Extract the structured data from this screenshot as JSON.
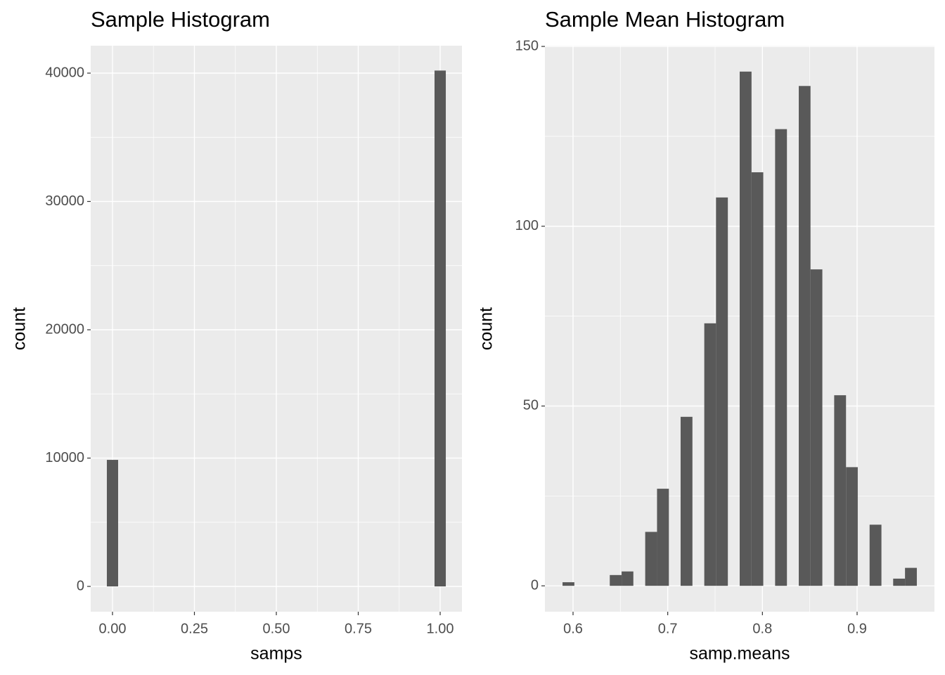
{
  "chart_data": [
    {
      "type": "histogram",
      "title": "Sample Histogram",
      "x_label": "samps",
      "y_label": "count",
      "bins": [
        -0.0172,
        0.0172,
        0.0517,
        0.0862,
        0.1207,
        0.1552,
        0.1897,
        0.2241,
        0.2586,
        0.2931,
        0.3276,
        0.3621,
        0.3966,
        0.431,
        0.4655,
        0.5,
        0.5345,
        0.569,
        0.6034,
        0.6379,
        0.6724,
        0.7069,
        0.7414,
        0.7759,
        0.8103,
        0.8448,
        0.8793,
        0.9138,
        0.9483,
        0.9828,
        1.0172
      ],
      "values": [
        9860,
        0,
        0,
        0,
        0,
        0,
        0,
        0,
        0,
        0,
        0,
        0,
        0,
        0,
        0,
        0,
        0,
        0,
        0,
        0,
        0,
        0,
        0,
        0,
        0,
        0,
        0,
        0,
        0,
        40200
      ],
      "color": "#595959",
      "xlim": [
        -0.0665,
        1.0665
      ],
      "xticks": [
        {
          "value": 0,
          "label": "0.00"
        },
        0.25,
        {
          "value": 0.5,
          "label": "0.50"
        },
        0.75,
        {
          "value": 1,
          "label": "1.00"
        }
      ],
      "ylim": [
        -1973,
        42137
      ],
      "yticks": [
        0,
        10000,
        20000,
        30000,
        40000
      ],
      "grid": true
    },
    {
      "type": "histogram",
      "title": "Sample Mean Histogram",
      "x_label": "samp.means",
      "y_label": "count",
      "bins": [
        0.5889,
        0.6014,
        0.6138,
        0.6263,
        0.6388,
        0.6513,
        0.6637,
        0.6762,
        0.6887,
        0.7012,
        0.7136,
        0.7261,
        0.7386,
        0.751,
        0.7635,
        0.776,
        0.7885,
        0.8009,
        0.8134,
        0.8259,
        0.8384,
        0.8508,
        0.8633,
        0.8758,
        0.8883,
        0.9007,
        0.9132,
        0.9257,
        0.9381,
        0.9506,
        0.9631
      ],
      "values": [
        1,
        0,
        0,
        0,
        3,
        4,
        0,
        15,
        27,
        0,
        47,
        0,
        73,
        108,
        0,
        143,
        115,
        0,
        127,
        0,
        139,
        88,
        0,
        53,
        33,
        0,
        17,
        0,
        2,
        5
      ],
      "color": "#595959",
      "xlim": [
        0.5703,
        0.9817
      ],
      "xticks": [
        0.6,
        0.7,
        0.8,
        0.9
      ],
      "ylim": [
        -7.2,
        150.2
      ],
      "yticks": [
        0,
        50,
        100,
        150
      ],
      "grid": true
    }
  ]
}
